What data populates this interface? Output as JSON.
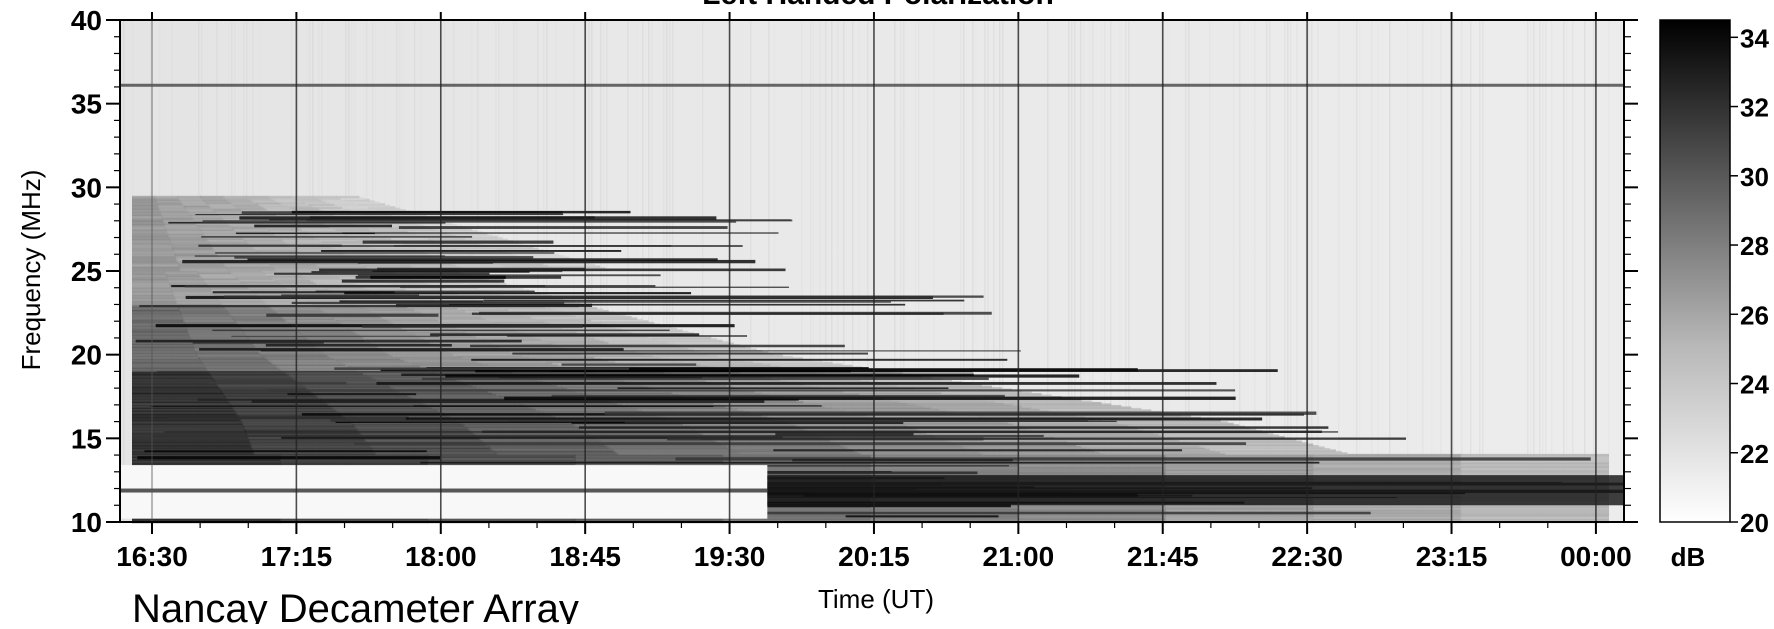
{
  "chart_data": {
    "type": "heatmap",
    "title": "Left Handed Polarization",
    "xlabel": "Time (UT)",
    "ylabel": "Frequency (MHz)",
    "footer_text": "Nancay Decameter Array",
    "x_ticks": [
      "16:30",
      "17:15",
      "18:00",
      "18:45",
      "19:30",
      "20:15",
      "21:00",
      "21:45",
      "22:30",
      "23:15",
      "00:00"
    ],
    "y_ticks": [
      10,
      15,
      20,
      25,
      30,
      35,
      40
    ],
    "ylim": [
      10,
      40
    ],
    "xlim_minutes_labels": [
      "16:30",
      "00:20"
    ],
    "grid": "vertical lines every 45 min",
    "colorbar": {
      "label": "dB",
      "ticks": [
        20,
        22,
        24,
        26,
        28,
        30,
        32,
        34
      ],
      "range": [
        20,
        34.5
      ],
      "colormap": "gray_r"
    },
    "features": [
      {
        "name": "strong low-frequency emission",
        "time_range": [
          "16:30",
          "22:00"
        ],
        "freq_range_mhz": [
          10,
          29
        ]
      },
      {
        "name": "narrowband interference line",
        "freq_mhz": 36
      }
    ]
  }
}
